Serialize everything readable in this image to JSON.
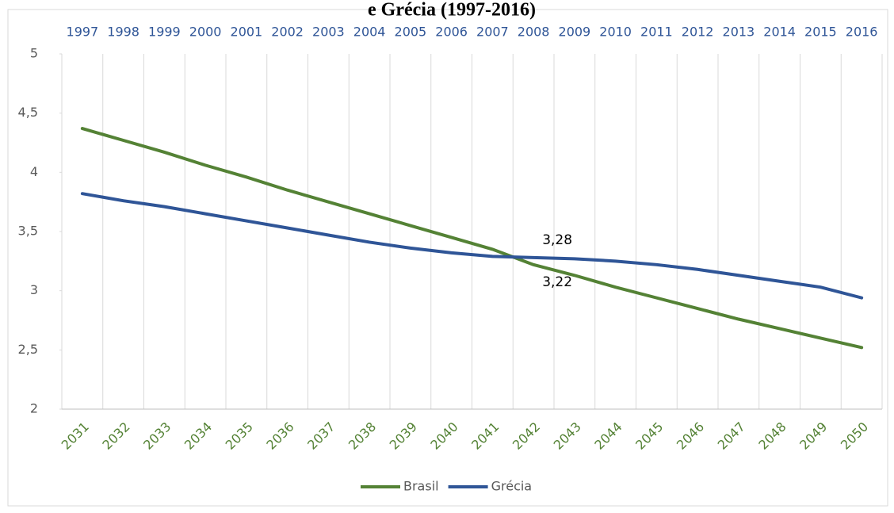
{
  "chart_data": {
    "type": "line",
    "title": "e Grécia (1997-2016)",
    "categories": [
      "2031",
      "2032",
      "2033",
      "2034",
      "2035",
      "2036",
      "2037",
      "2038",
      "2039",
      "2040",
      "2041",
      "2042",
      "2043",
      "2044",
      "2045",
      "2046",
      "2047",
      "2048",
      "2049",
      "2050"
    ],
    "x2_categories": [
      "1997",
      "1998",
      "1999",
      "2000",
      "2001",
      "2002",
      "2003",
      "2004",
      "2005",
      "2006",
      "2007",
      "2008",
      "2009",
      "2010",
      "2011",
      "2012",
      "2013",
      "2014",
      "2015",
      "2016"
    ],
    "series": [
      {
        "name": "Brasil",
        "color": "#548235",
        "values": [
          4.37,
          4.27,
          4.17,
          4.06,
          3.96,
          3.85,
          3.75,
          3.65,
          3.55,
          3.45,
          3.35,
          3.22,
          3.13,
          3.03,
          2.94,
          2.85,
          2.76,
          2.68,
          2.6,
          2.52
        ],
        "value_labels": [
          null,
          null,
          null,
          null,
          null,
          null,
          null,
          null,
          null,
          null,
          null,
          "3,22",
          null,
          null,
          null,
          null,
          null,
          null,
          null,
          null
        ]
      },
      {
        "name": "Grécia",
        "color": "#2f5597",
        "values": [
          3.82,
          3.76,
          3.71,
          3.65,
          3.59,
          3.53,
          3.47,
          3.41,
          3.36,
          3.32,
          3.29,
          3.28,
          3.27,
          3.25,
          3.22,
          3.18,
          3.13,
          3.08,
          3.03,
          2.94
        ],
        "value_labels": [
          null,
          null,
          null,
          null,
          null,
          null,
          null,
          null,
          null,
          null,
          null,
          "3,28",
          null,
          null,
          null,
          null,
          null,
          null,
          null,
          null
        ]
      }
    ],
    "ylim": [
      2,
      5
    ],
    "yticks": [
      2,
      {
        "value": 2.5,
        "label": "2,5"
      },
      3,
      {
        "value": 3.5,
        "label": "3,5"
      },
      4,
      {
        "value": 4.5,
        "label": "4,5"
      },
      5
    ],
    "legend": "bottom"
  }
}
